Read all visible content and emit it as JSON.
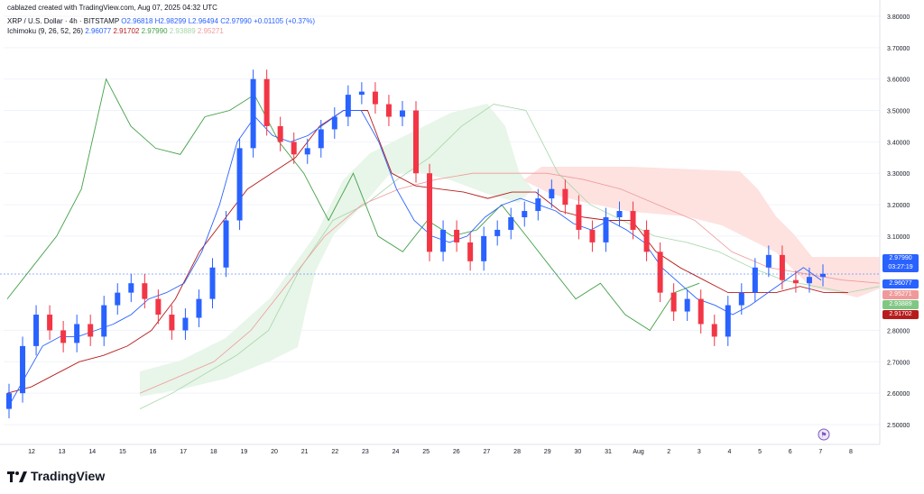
{
  "caption": "cablazed created with TradingView.com, Aug 07, 2025 04:32 UTC",
  "symbol_line": {
    "symbol": "XRP / U.S. Dollar · 4h · BITSTAMP",
    "open": "O2.96818",
    "high": "H2.98299",
    "low": "L2.96494",
    "close": "C2.97990",
    "change": "+0.01105 (+0.37%)"
  },
  "indicator_line": {
    "name": "Ichimoku (9, 26, 52, 26)",
    "tenkan": "2.96077",
    "kijun": "2.91702",
    "lagging": "2.97990",
    "span_a": "2.93889",
    "span_b": "2.95271"
  },
  "logo_text": "TradingView",
  "colors": {
    "up": "#2962ff",
    "down": "#f23645",
    "tenkan": "#2962ff",
    "kijun": "#b71c1c",
    "lagging": "#43a047",
    "cloud_bull": "#e8f5e9",
    "cloud_bear": "#fde2e0"
  },
  "price_tags": [
    {
      "label": "2.97990",
      "sub": "03:27:19",
      "color": "#2962ff",
      "price": 2.9799
    },
    {
      "label": "2.96077",
      "color": "#2962ff",
      "price": 2.96077
    },
    {
      "label": "2.95271",
      "color": "#ef9a9a",
      "price": 2.95271
    },
    {
      "label": "2.93889",
      "color": "#81c784",
      "price": 2.93889
    },
    {
      "label": "2.91702",
      "color": "#b71c1c",
      "price": 2.91702
    }
  ],
  "chart_data": {
    "type": "candlestick",
    "y_ticks": [
      "3.80000",
      "3.70000",
      "3.60000",
      "3.50000",
      "3.40000",
      "3.30000",
      "3.20000",
      "3.10000",
      "2.80000",
      "2.70000",
      "2.60000",
      "2.50000"
    ],
    "y_tick_values": [
      3.8,
      3.7,
      3.6,
      3.5,
      3.4,
      3.3,
      3.2,
      3.1,
      2.8,
      2.7,
      2.6,
      2.5
    ],
    "x_ticks": [
      "12",
      "13",
      "14",
      "15",
      "16",
      "17",
      "18",
      "19",
      "20",
      "21",
      "22",
      "23",
      "24",
      "25",
      "26",
      "27",
      "28",
      "29",
      "30",
      "31",
      "Aug",
      "2",
      "3",
      "4",
      "5",
      "6",
      "7",
      "8"
    ],
    "ylim": [
      2.45,
      3.82
    ],
    "current_price": 2.9799,
    "candles_close": [
      2.6,
      2.75,
      2.85,
      2.8,
      2.76,
      2.82,
      2.78,
      2.88,
      2.92,
      2.95,
      2.9,
      2.85,
      2.8,
      2.84,
      2.9,
      3.0,
      3.15,
      3.38,
      3.6,
      3.45,
      3.4,
      3.36,
      3.38,
      3.44,
      3.48,
      3.55,
      3.56,
      3.52,
      3.48,
      3.5,
      3.3,
      3.05,
      3.12,
      3.08,
      3.02,
      3.1,
      3.12,
      3.16,
      3.18,
      3.22,
      3.25,
      3.2,
      3.12,
      3.08,
      3.16,
      3.18,
      3.12,
      3.05,
      2.92,
      2.86,
      2.9,
      2.82,
      2.78,
      2.88,
      2.92,
      3.0,
      3.04,
      2.96,
      2.95,
      2.97,
      2.98
    ],
    "tenkan_line": [
      2.55,
      2.65,
      2.75,
      2.78,
      2.78,
      2.8,
      2.82,
      2.85,
      2.9,
      2.92,
      2.95,
      3.05,
      3.2,
      3.4,
      3.48,
      3.42,
      3.4,
      3.42,
      3.46,
      3.5,
      3.5,
      3.4,
      3.25,
      3.15,
      3.1,
      3.08,
      3.1,
      3.16,
      3.2,
      3.22,
      3.2,
      3.18,
      3.14,
      3.12,
      3.15,
      3.12,
      3.08,
      3.0,
      2.95,
      2.9,
      2.88,
      2.85,
      2.88,
      2.92,
      2.96,
      3.0,
      2.96
    ],
    "kijun_line": [
      2.6,
      2.62,
      2.66,
      2.7,
      2.72,
      2.75,
      2.8,
      2.9,
      3.05,
      3.15,
      3.25,
      3.3,
      3.35,
      3.45,
      3.5,
      3.5,
      3.3,
      3.26,
      3.25,
      3.24,
      3.22,
      3.24,
      3.24,
      3.18,
      3.16,
      3.15,
      3.15,
      3.05,
      3.0,
      2.96,
      2.92,
      2.92,
      2.92,
      2.94,
      2.92,
      2.92
    ],
    "lagging_span": [
      2.9,
      3.0,
      3.1,
      3.25,
      3.6,
      3.45,
      3.38,
      3.36,
      3.48,
      3.5,
      3.55,
      3.4,
      3.3,
      3.15,
      3.3,
      3.1,
      3.05,
      3.15,
      3.1,
      3.12,
      3.2,
      3.1,
      3.0,
      2.9,
      2.95,
      2.85,
      2.8,
      2.92,
      2.95
    ],
    "span_a": [
      2.55,
      2.6,
      2.66,
      2.72,
      2.8,
      3.0,
      3.15,
      3.2,
      3.28,
      3.35,
      3.45,
      3.52,
      3.5,
      3.3,
      3.2,
      3.15,
      3.1,
      3.08,
      3.05,
      3.0,
      2.96,
      2.94,
      2.92,
      2.94
    ],
    "span_b": [
      2.6,
      2.65,
      2.7,
      2.8,
      2.95,
      3.1,
      3.2,
      3.25,
      3.28,
      3.3,
      3.3,
      3.3,
      3.28,
      3.25,
      3.2,
      3.15,
      3.05,
      3.0,
      2.98,
      2.96,
      2.95
    ]
  }
}
